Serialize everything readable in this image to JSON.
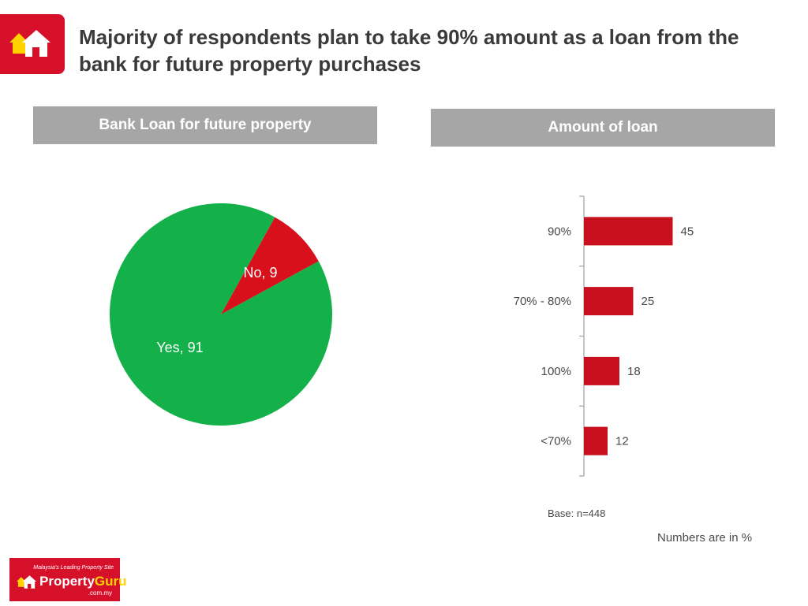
{
  "title": "Majority of respondents plan to take 90% amount as a loan from the bank for future property purchases",
  "brand": {
    "tagline": "Malaysia's Leading Property Site",
    "name_a": "Property",
    "name_b": "Guru",
    "domain": ".com.my",
    "color_red": "#d7102a",
    "color_yellow": "#ffd200"
  },
  "chart_data": [
    {
      "type": "pie",
      "title": "Bank Loan for future property",
      "slices": [
        {
          "label": "No, 9",
          "name": "No",
          "value": 9,
          "color": "#d7101b"
        },
        {
          "label": "Yes, 91",
          "name": "Yes",
          "value": 91,
          "color": "#14b04a"
        }
      ]
    },
    {
      "type": "bar",
      "orientation": "horizontal",
      "title": "Amount of loan",
      "categories": [
        "90%",
        "70% - 80%",
        "100%",
        "<70%"
      ],
      "values": [
        45,
        25,
        18,
        12
      ],
      "bar_color": "#c8101e",
      "grid": false,
      "xlim": [
        0,
        100
      ]
    }
  ],
  "notes": {
    "base": "Base: n=448",
    "units": "Numbers are in %"
  }
}
